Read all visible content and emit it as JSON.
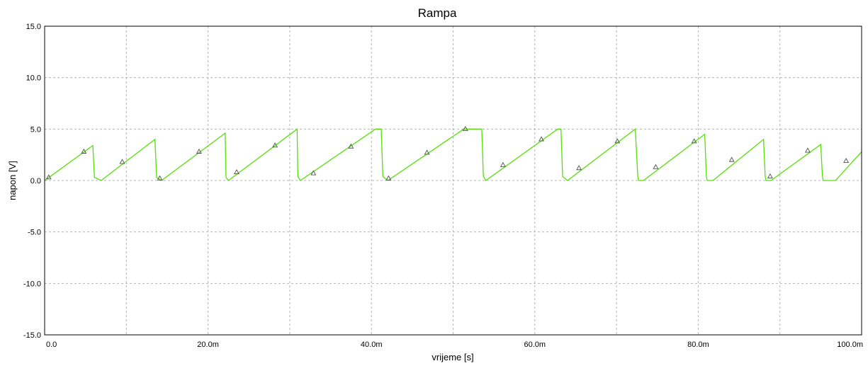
{
  "chart_data": {
    "type": "line",
    "title": "Rampa",
    "xlabel": "vrijeme [s]",
    "ylabel": "napon [V]",
    "xlim": [
      0,
      0.1
    ],
    "ylim": [
      -15,
      15
    ],
    "x_ticks": [
      {
        "value": 0.0,
        "label": "0.0"
      },
      {
        "value": 0.02,
        "label": "20.0m"
      },
      {
        "value": 0.04,
        "label": "40.0m"
      },
      {
        "value": 0.06,
        "label": "60.0m"
      },
      {
        "value": 0.08,
        "label": "80.0m"
      },
      {
        "value": 0.1,
        "label": "100.0m"
      }
    ],
    "y_ticks": [
      {
        "value": 15,
        "label": "15.0"
      },
      {
        "value": 10,
        "label": "10.0"
      },
      {
        "value": 5,
        "label": "5.0"
      },
      {
        "value": 0,
        "label": "0.0"
      },
      {
        "value": -5,
        "label": "-5.0"
      },
      {
        "value": -10,
        "label": "-10.0"
      },
      {
        "value": -15,
        "label": "-15.0"
      }
    ],
    "grid": true,
    "series": [
      {
        "color": "#55e00a",
        "marker": "triangle",
        "x": [
          0.0,
          0.0059,
          0.0061,
          0.0069,
          0.0135,
          0.0137,
          0.0143,
          0.0221,
          0.0222,
          0.0225,
          0.0309,
          0.031,
          0.0313,
          0.0405,
          0.0412,
          0.0414,
          0.042,
          0.0513,
          0.0535,
          0.0537,
          0.054,
          0.0628,
          0.0632,
          0.0634,
          0.064,
          0.0723,
          0.0726,
          0.0727,
          0.0733,
          0.0808,
          0.081,
          0.0811,
          0.0818,
          0.088,
          0.0882,
          0.0883,
          0.0889,
          0.095,
          0.0952,
          0.0953,
          0.0968,
          0.1
        ],
        "y": [
          0.0,
          3.4,
          0.3,
          0.0,
          4.0,
          0.3,
          0.0,
          4.6,
          0.3,
          0.0,
          5.0,
          0.4,
          0.0,
          5.0,
          5.0,
          0.4,
          0.0,
          5.0,
          5.0,
          0.4,
          0.0,
          5.0,
          5.0,
          0.4,
          0.0,
          5.0,
          0.4,
          0.0,
          0.0,
          4.5,
          0.4,
          0.0,
          0.0,
          4.0,
          0.4,
          0.0,
          0.0,
          3.5,
          0.4,
          0.0,
          0.0,
          2.8
        ],
        "markers_x": [
          0.0005,
          0.0048,
          0.0095,
          0.0141,
          0.0189,
          0.0235,
          0.0282,
          0.0329,
          0.0375,
          0.0421,
          0.0468,
          0.0515,
          0.0561,
          0.0608,
          0.0654,
          0.0701,
          0.0748,
          0.0795,
          0.0841,
          0.0888,
          0.0934,
          0.0981
        ],
        "markers_y": [
          0.3,
          2.8,
          1.8,
          0.2,
          2.8,
          0.8,
          3.4,
          0.7,
          3.3,
          0.2,
          2.7,
          5.0,
          1.5,
          4.0,
          1.2,
          3.8,
          1.3,
          3.8,
          2.0,
          0.4,
          2.9,
          1.9
        ]
      }
    ]
  }
}
